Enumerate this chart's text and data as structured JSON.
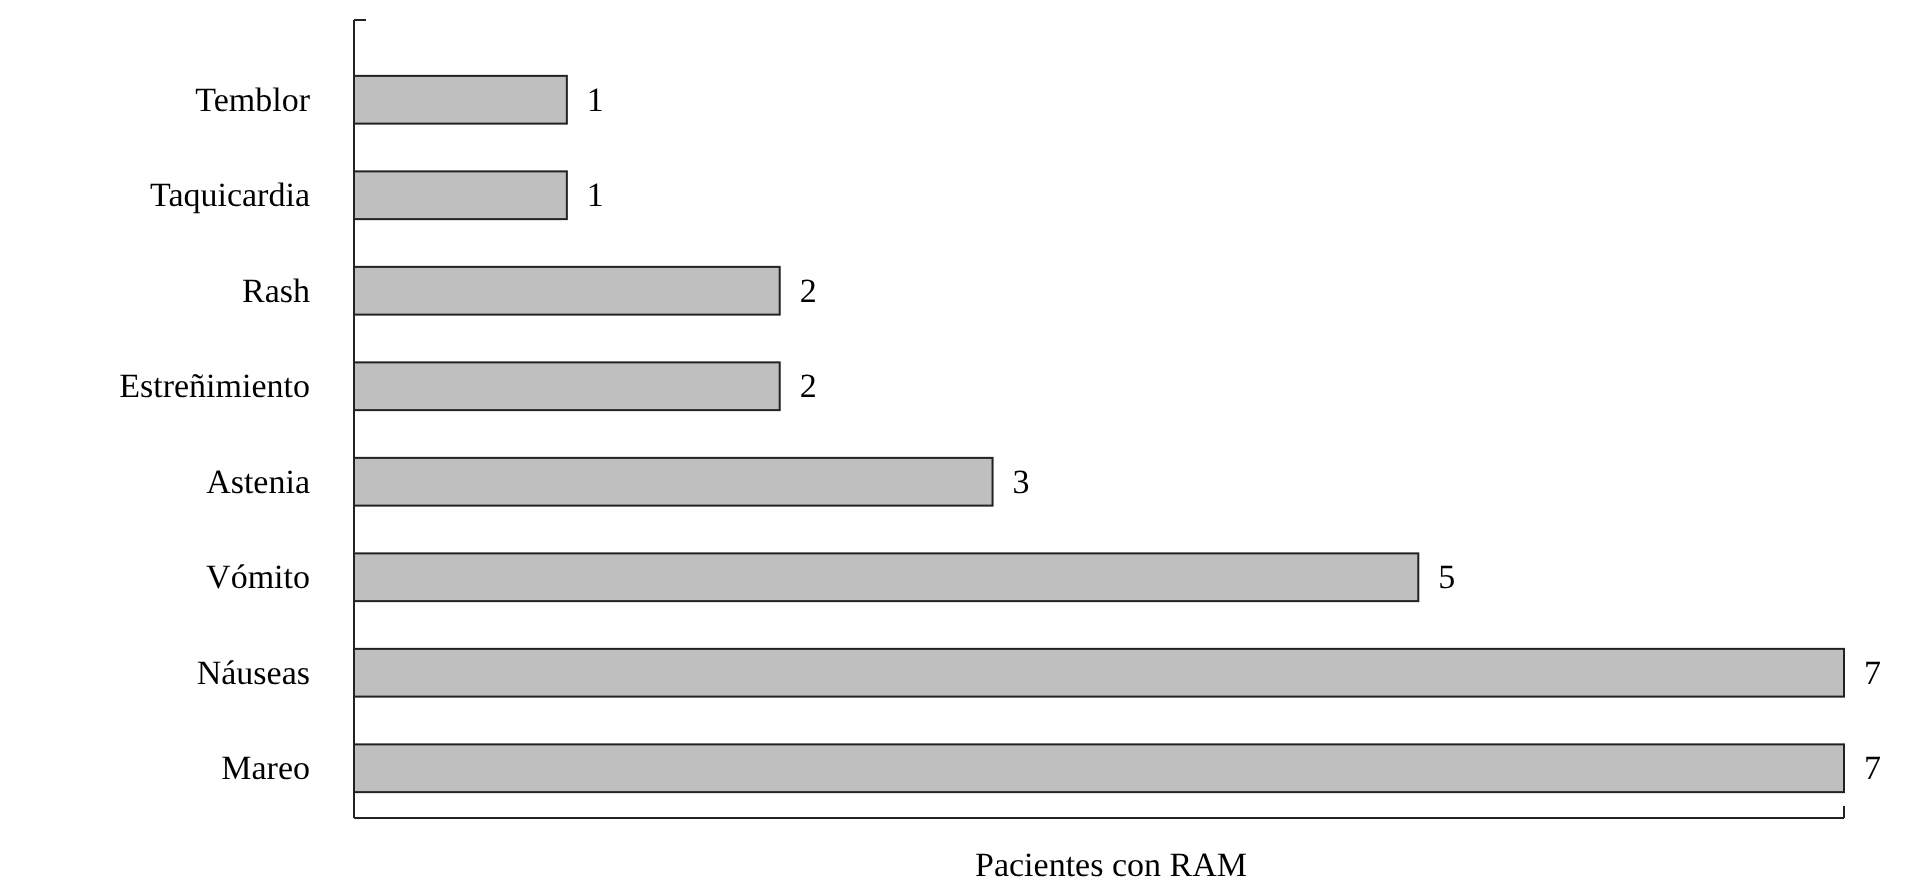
{
  "chart_data": {
    "type": "bar",
    "orientation": "horizontal",
    "xlabel": "Pacientes con RAM",
    "categories": [
      "Temblor",
      "Taquicardia",
      "Rash",
      "Estreñimiento",
      "Astenia",
      "Vómito",
      "Náuseas",
      "Mareo"
    ],
    "values": [
      1,
      1,
      2,
      2,
      3,
      5,
      7,
      7
    ],
    "color": "#bfbfbf",
    "xlim": [
      0,
      7
    ],
    "data_labels": true,
    "tick_labels": "y"
  }
}
